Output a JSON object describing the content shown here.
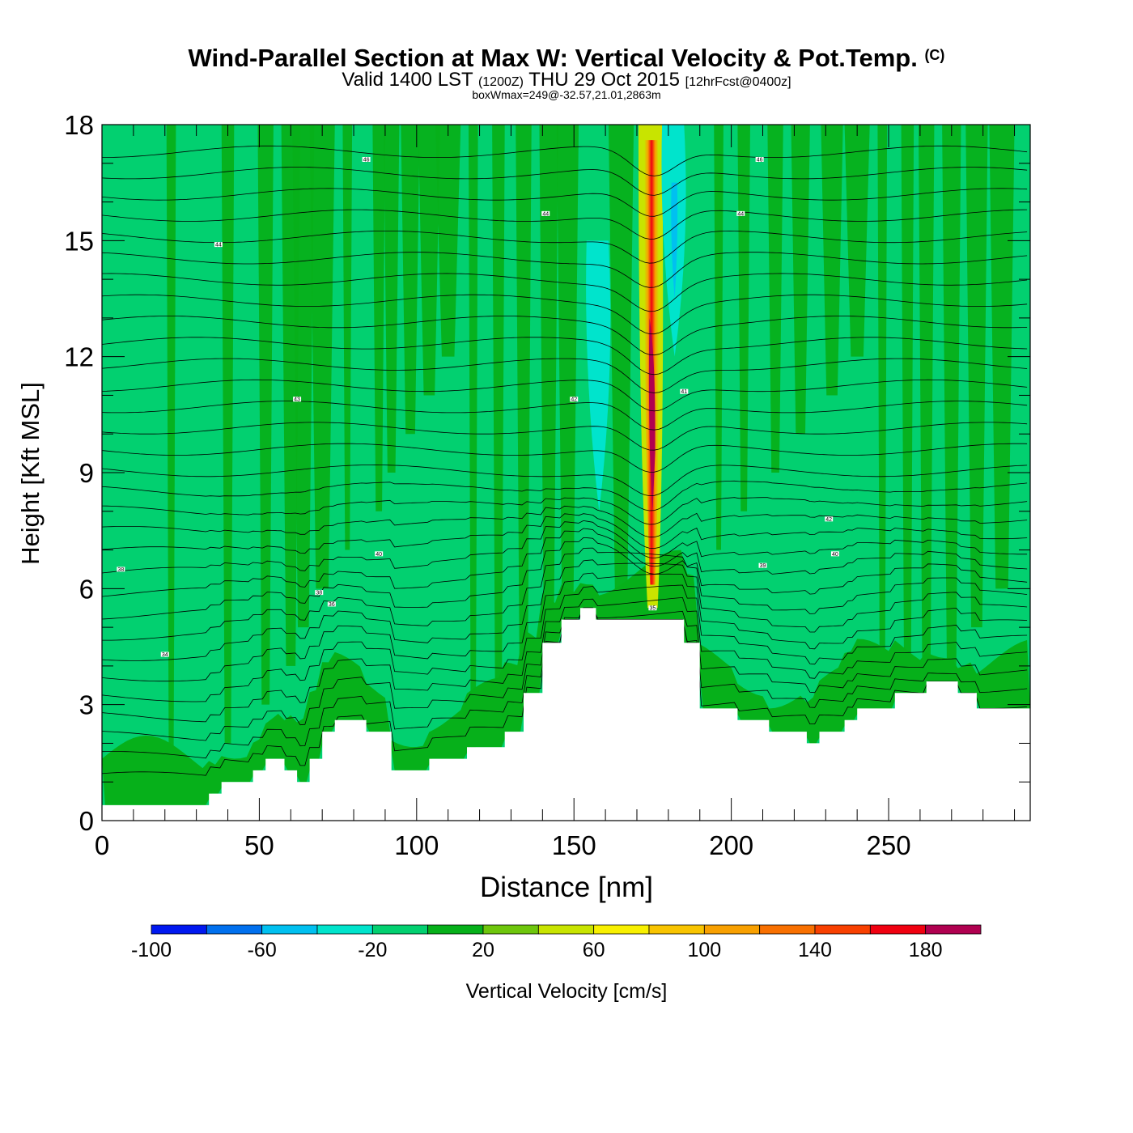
{
  "chart_data": {
    "type": "heatmap",
    "title": "Wind-Parallel Section at Max W: Vertical Velocity & Pot.Temp.",
    "title_mark": "(C)",
    "subtitle_main": "Valid 1400 LST",
    "subtitle_utc": "(1200Z)",
    "subtitle_date": "THU 29 Oct 2015",
    "subtitle_fcst": "[12hrFcst@0400z]",
    "box_info": "boxWmax=249@-32.57,21.01,2863m",
    "xlabel": "Distance [nm]",
    "ylabel": "Height [Kft MSL]",
    "xlim": [
      0,
      295
    ],
    "ylim": [
      0,
      18
    ],
    "x_ticks": [
      0,
      50,
      100,
      150,
      200,
      250
    ],
    "x_tick_labels": [
      "0",
      "50",
      "100",
      "150",
      "200",
      "250"
    ],
    "y_ticks": [
      0,
      3,
      6,
      9,
      12,
      15,
      18
    ],
    "y_tick_labels": [
      "0",
      "3",
      "6",
      "9",
      "12",
      "15",
      "18"
    ],
    "background_value_cms": -10,
    "terrain_kft": [
      [
        0,
        0.4
      ],
      [
        34,
        0.4
      ],
      [
        34,
        0.7
      ],
      [
        38,
        0.7
      ],
      [
        38,
        1.0
      ],
      [
        48,
        1.0
      ],
      [
        48,
        1.3
      ],
      [
        52,
        1.3
      ],
      [
        52,
        1.6
      ],
      [
        58,
        1.6
      ],
      [
        58,
        1.3
      ],
      [
        62,
        1.3
      ],
      [
        62,
        1.0
      ],
      [
        66,
        1.0
      ],
      [
        66,
        1.6
      ],
      [
        70,
        1.6
      ],
      [
        70,
        2.3
      ],
      [
        74,
        2.3
      ],
      [
        74,
        2.6
      ],
      [
        84,
        2.6
      ],
      [
        84,
        2.3
      ],
      [
        92,
        2.3
      ],
      [
        92,
        1.3
      ],
      [
        104,
        1.3
      ],
      [
        104,
        1.6
      ],
      [
        116,
        1.6
      ],
      [
        116,
        1.9
      ],
      [
        128,
        1.9
      ],
      [
        128,
        2.3
      ],
      [
        134,
        2.3
      ],
      [
        134,
        3.3
      ],
      [
        140,
        3.3
      ],
      [
        140,
        4.6
      ],
      [
        146,
        4.6
      ],
      [
        146,
        5.2
      ],
      [
        152,
        5.2
      ],
      [
        152,
        5.5
      ],
      [
        157,
        5.5
      ],
      [
        157,
        5.2
      ],
      [
        185,
        5.2
      ],
      [
        185,
        4.6
      ],
      [
        190,
        4.6
      ],
      [
        190,
        2.9
      ],
      [
        202,
        2.9
      ],
      [
        202,
        2.6
      ],
      [
        212,
        2.6
      ],
      [
        212,
        2.3
      ],
      [
        224,
        2.3
      ],
      [
        224,
        2.0
      ],
      [
        228,
        2.0
      ],
      [
        228,
        2.3
      ],
      [
        236,
        2.3
      ],
      [
        236,
        2.6
      ],
      [
        240,
        2.6
      ],
      [
        240,
        2.9
      ],
      [
        252,
        2.9
      ],
      [
        252,
        3.3
      ],
      [
        262,
        3.3
      ],
      [
        262,
        3.6
      ],
      [
        272,
        3.6
      ],
      [
        272,
        3.3
      ],
      [
        278,
        3.3
      ],
      [
        278,
        2.9
      ],
      [
        295,
        2.9
      ]
    ],
    "w_features": [
      {
        "name": "updraft-plume",
        "x_center": 175,
        "z_bottom": 5.5,
        "z_top": 18,
        "w_max": 180
      },
      {
        "name": "downdraft-lee",
        "x_center": 158,
        "z_bottom": 8,
        "z_top": 15,
        "w_min": -40
      },
      {
        "name": "downdraft-upper",
        "x_center": 182,
        "z_bottom": 12,
        "z_top": 18,
        "w_min": -60
      }
    ],
    "theta_contour_labels": [
      {
        "text": "46",
        "x": 84,
        "z": 17.1
      },
      {
        "text": "44",
        "x": 37,
        "z": 14.9
      },
      {
        "text": "44",
        "x": 141,
        "z": 15.7
      },
      {
        "text": "44",
        "x": 203,
        "z": 15.7
      },
      {
        "text": "46",
        "x": 209,
        "z": 17.1
      },
      {
        "text": "43",
        "x": 62,
        "z": 10.9
      },
      {
        "text": "42",
        "x": 150,
        "z": 10.9
      },
      {
        "text": "41",
        "x": 185,
        "z": 11.1
      },
      {
        "text": "42",
        "x": 231,
        "z": 7.8
      },
      {
        "text": "40",
        "x": 88,
        "z": 6.9
      },
      {
        "text": "40",
        "x": 233,
        "z": 6.9
      },
      {
        "text": "39",
        "x": 210,
        "z": 6.6
      },
      {
        "text": "38",
        "x": 6,
        "z": 6.5
      },
      {
        "text": "38",
        "x": 69,
        "z": 5.9
      },
      {
        "text": "36",
        "x": 73,
        "z": 5.6
      },
      {
        "text": "35",
        "x": 175,
        "z": 5.5
      },
      {
        "text": "34",
        "x": 20,
        "z": 4.3
      }
    ],
    "colorbar": {
      "label": "Vertical Velocity [cm/s]",
      "bounds": [
        -100,
        200
      ],
      "step": 20,
      "tick_values": [
        -100,
        -60,
        -20,
        20,
        60,
        100,
        140,
        180
      ],
      "tick_labels": [
        "-100",
        "-60",
        "-20",
        "20",
        "60",
        "100",
        "140",
        "180"
      ],
      "colors": [
        "#0018f0",
        "#0070ee",
        "#00c0f0",
        "#00e4cc",
        "#02d070",
        "#06b01a",
        "#6ec60c",
        "#c8e400",
        "#f8f000",
        "#f8c400",
        "#f8a000",
        "#f87000",
        "#f84000",
        "#f00010",
        "#b00050"
      ]
    }
  }
}
